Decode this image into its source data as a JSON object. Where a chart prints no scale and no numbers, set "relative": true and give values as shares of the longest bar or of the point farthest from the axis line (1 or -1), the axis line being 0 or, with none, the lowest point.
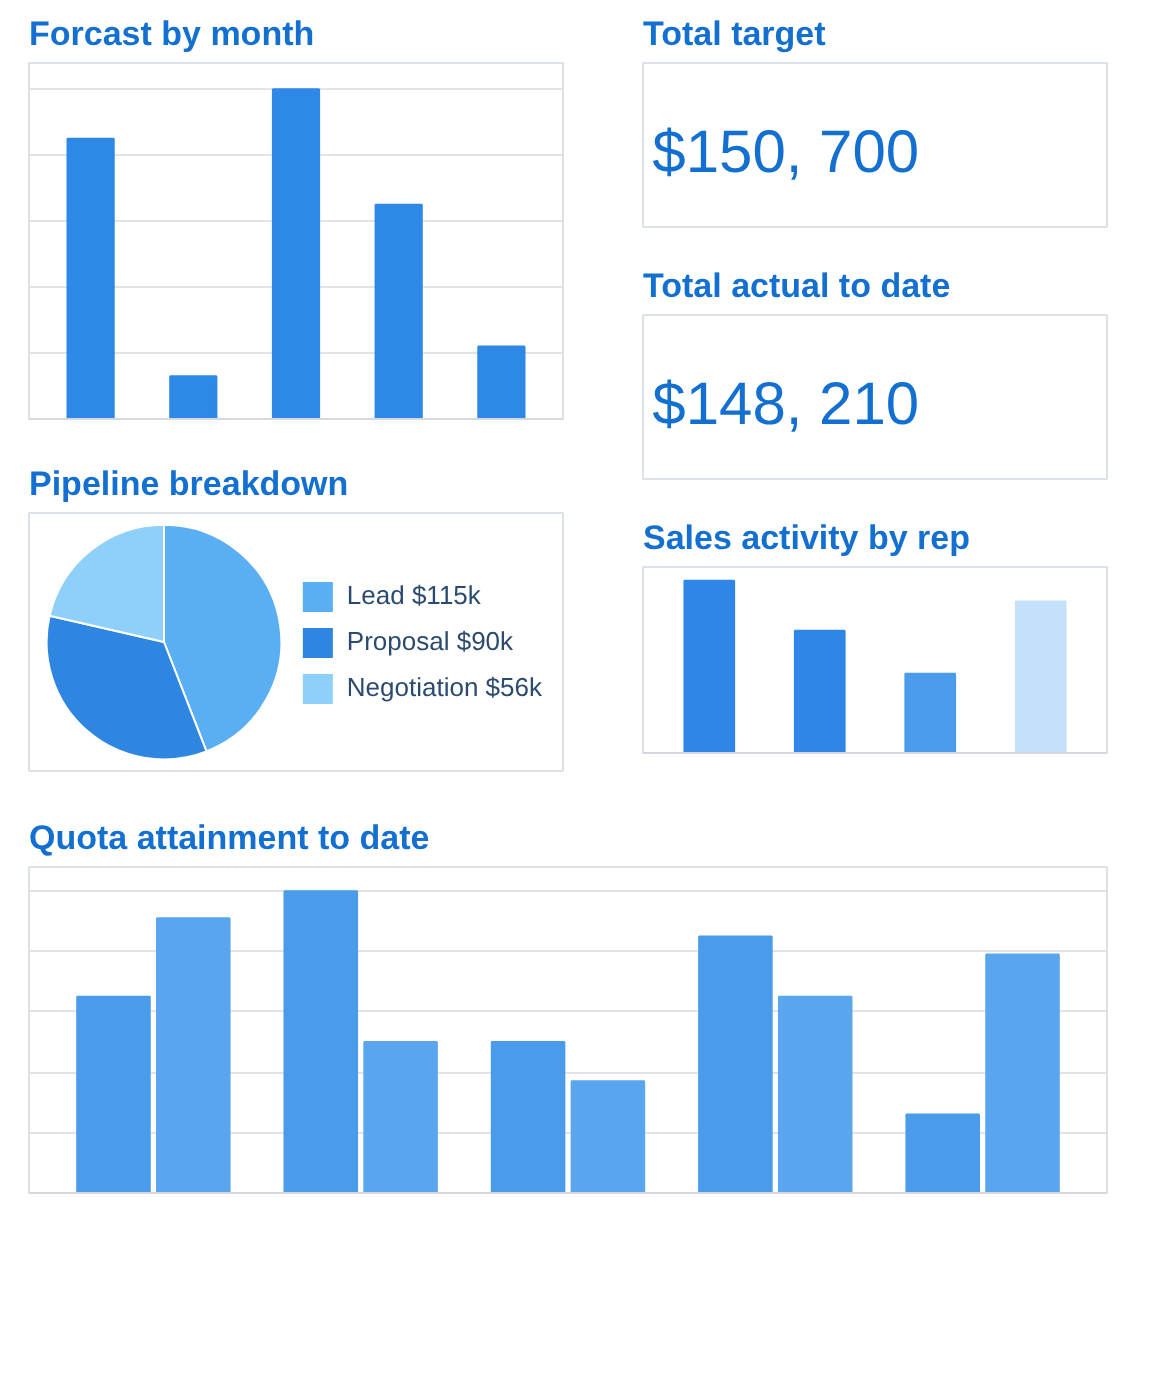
{
  "chart_data": [
    {
      "type": "bar",
      "title": "Forcast by month",
      "categories": [
        null,
        null,
        null,
        null,
        null
      ],
      "values": [
        0.85,
        0.13,
        1,
        0.65,
        0.22
      ],
      "color": "#2e88e6",
      "relative": true,
      "grid": "y"
    },
    {
      "type": "other",
      "title": "Total target",
      "annotations": [
        "$150, 700"
      ]
    },
    {
      "type": "other",
      "title": "Total actual to date",
      "annotations": [
        "$148, 210"
      ]
    },
    {
      "type": "pie",
      "title": "Pipeline breakdown",
      "categories": [
        "Lead $115k",
        "Proposal $90k",
        "Negotiation $56k"
      ],
      "values": [
        44.1,
        34.5,
        21.4
      ],
      "colors": [
        "#5aaef2",
        "#2f86e0",
        "#8fd0fb"
      ],
      "legend": "right"
    },
    {
      "type": "bar",
      "title": "Sales activity by rep",
      "categories": [
        null,
        null,
        null,
        null
      ],
      "values": [
        1,
        0.71,
        0.46,
        0.88
      ],
      "colors": [
        "#2f86e6",
        "#2f86e6",
        "#4a9be9",
        "#c5e0fb"
      ],
      "relative": true
    },
    {
      "type": "bar",
      "title": "Quota attainment to date",
      "categories": [
        null,
        null,
        null,
        null,
        null
      ],
      "relative": true,
      "grid": "y",
      "series": [
        {
          "color": "#4a9be9",
          "values": [
            0.65,
            1,
            0.5,
            0.85,
            0.26
          ]
        },
        {
          "color": "#5aa6ee",
          "values": [
            0.91,
            0.5,
            0.37,
            0.65,
            0.79
          ]
        }
      ]
    }
  ]
}
